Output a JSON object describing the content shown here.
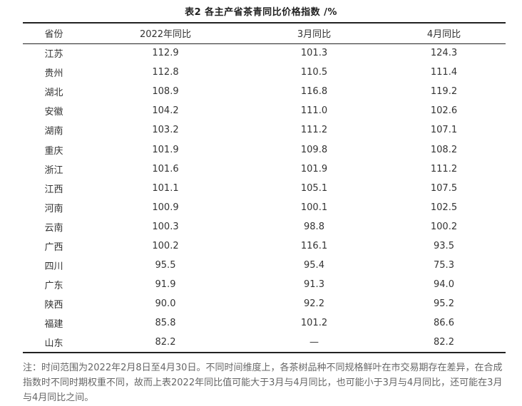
{
  "title": "表2  各主产省茶青同比价格指数 /%",
  "table": {
    "headers": [
      "省份",
      "2022年同比",
      "3月同比",
      "4月同比"
    ],
    "rows": [
      [
        "江苏",
        "112.9",
        "101.3",
        "124.3"
      ],
      [
        "贵州",
        "112.8",
        "110.5",
        "111.4"
      ],
      [
        "湖北",
        "108.9",
        "116.8",
        "119.2"
      ],
      [
        "安徽",
        "104.2",
        "111.0",
        "102.6"
      ],
      [
        "湖南",
        "103.2",
        "111.2",
        "107.1"
      ],
      [
        "重庆",
        "101.9",
        "109.8",
        "108.2"
      ],
      [
        "浙江",
        "101.6",
        "101.9",
        "111.2"
      ],
      [
        "江西",
        "101.1",
        "105.1",
        "107.5"
      ],
      [
        "河南",
        "100.9",
        "100.1",
        "102.5"
      ],
      [
        "云南",
        "100.3",
        "98.8",
        "100.2"
      ],
      [
        "广西",
        "100.2",
        "116.1",
        "93.5"
      ],
      [
        "四川",
        "95.5",
        "95.4",
        "75.3"
      ],
      [
        "广东",
        "91.9",
        "91.3",
        "94.0"
      ],
      [
        "陕西",
        "90.0",
        "92.2",
        "95.2"
      ],
      [
        "福建",
        "85.8",
        "101.2",
        "86.6"
      ],
      [
        "山东",
        "82.2",
        "—",
        "82.2"
      ]
    ]
  },
  "note": "注：时间范围为2022年2月8日至4月30日。不同时间维度上，各茶树品种不同规格鲜叶在市交易期存在差异，在合成指数时不同时期权重不同，故而上表2022年同比值可能大于3月与4月同比，也可能小于3月与4月同比，还可能在3月与4月同比之间。"
}
